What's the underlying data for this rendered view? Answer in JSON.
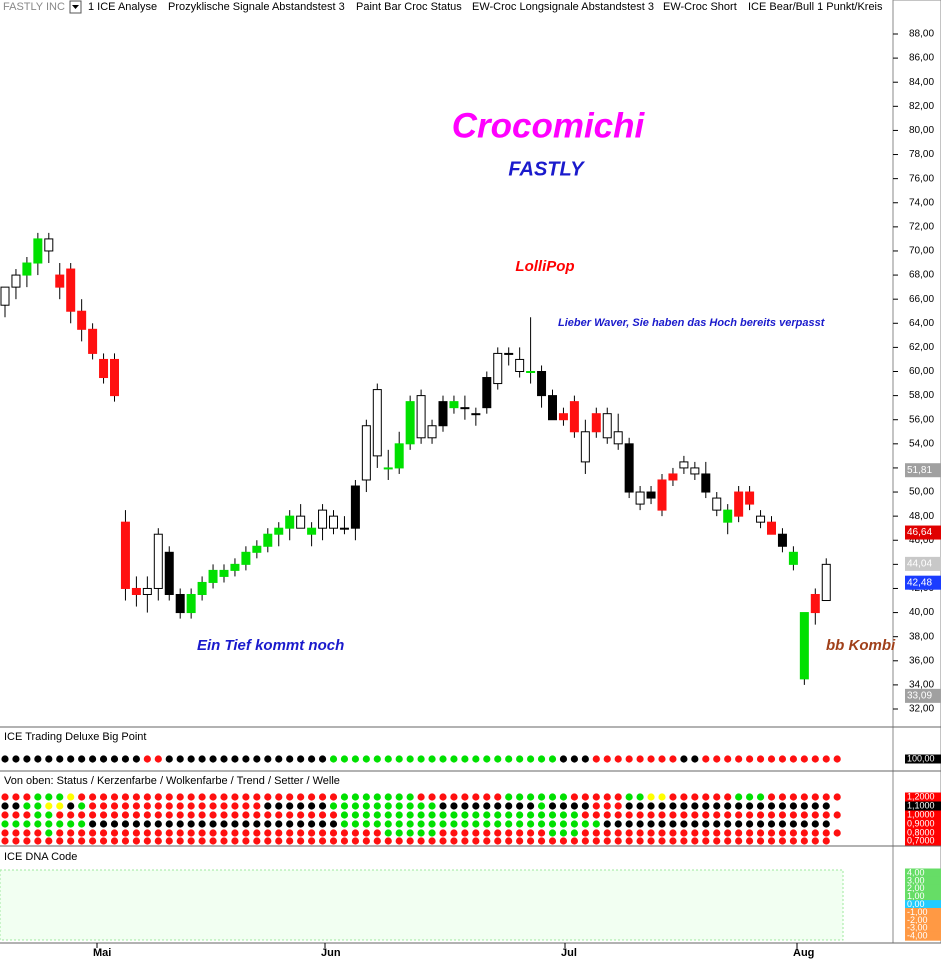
{
  "toolbar": {
    "symbol": "FASTLY INC",
    "items": [
      "1 ICE Analyse",
      "Prozyklische Signale Abstandstest 3",
      "Paint Bar Croc Status",
      "EW-Croc Longsignale Abstandstest 3",
      "EW-Croc Short",
      "ICE Bear/Bull 1 Punkt/Kreis"
    ]
  },
  "annotations": {
    "title": "Crocomichi",
    "subtitle": "FASTLY",
    "lollipop": "LolliPop",
    "waver": "Lieber Waver, Sie haben das Hoch bereits verpasst",
    "tief": "Ein Tief kommt noch",
    "kombi": "bb Kombi"
  },
  "price_axis": {
    "ylim": [
      32,
      88
    ],
    "yticks": [
      {
        "value": 88,
        "label": "88,00"
      },
      {
        "value": 86,
        "label": "86,00"
      },
      {
        "value": 84,
        "label": "84,00"
      },
      {
        "value": 82,
        "label": "82,00"
      },
      {
        "value": 80,
        "label": "80,00"
      },
      {
        "value": 78,
        "label": "78,00"
      },
      {
        "value": 76,
        "label": "76,00"
      },
      {
        "value": 74,
        "label": "74,00"
      },
      {
        "value": 72,
        "label": "72,00"
      },
      {
        "value": 70,
        "label": "70,00"
      },
      {
        "value": 68,
        "label": "68,00"
      },
      {
        "value": 66,
        "label": "66,00"
      },
      {
        "value": 64,
        "label": "64,00"
      },
      {
        "value": 62,
        "label": "62,00"
      },
      {
        "value": 60,
        "label": "60,00"
      },
      {
        "value": 58,
        "label": "58,00"
      },
      {
        "value": 56,
        "label": "56,00"
      },
      {
        "value": 54,
        "label": "54,00"
      },
      {
        "value": 52,
        "label": "52,00"
      },
      {
        "value": 50,
        "label": "50,00"
      },
      {
        "value": 48,
        "label": "48,00"
      },
      {
        "value": 46,
        "label": "46,00"
      },
      {
        "value": 44,
        "label": "44,00"
      },
      {
        "value": 42,
        "label": "42,00"
      },
      {
        "value": 40,
        "label": "40,00"
      },
      {
        "value": 38,
        "label": "38,00"
      },
      {
        "value": 36,
        "label": "36,00"
      },
      {
        "value": 34,
        "label": "34,00"
      },
      {
        "value": 32,
        "label": "32,00"
      }
    ],
    "tags": [
      {
        "value": 51.81,
        "label": "51,81",
        "color": "#a0a0a0"
      },
      {
        "value": 46.64,
        "label": "46,64",
        "color": "#e00000"
      },
      {
        "value": 44.04,
        "label": "44,04",
        "color": "#c8c8c8"
      },
      {
        "value": 42.48,
        "label": "42,48",
        "color": "#1a3cff"
      },
      {
        "value": 33.09,
        "label": "33,09",
        "color": "#a0a0a0"
      }
    ]
  },
  "candles": {
    "ohlc": [
      [
        65.5,
        67,
        64.5,
        67
      ],
      [
        67,
        68.5,
        66,
        68
      ],
      [
        68,
        69.5,
        67,
        69
      ],
      [
        69,
        71.5,
        68,
        71
      ],
      [
        70,
        71.5,
        69,
        71
      ],
      [
        68,
        69,
        66,
        67
      ],
      [
        68.5,
        69,
        64,
        65
      ],
      [
        65,
        66,
        62.5,
        63.5
      ],
      [
        63.5,
        64,
        61,
        61.5
      ],
      [
        61,
        61.5,
        59,
        59.5
      ],
      [
        61,
        61.5,
        57.5,
        58
      ],
      [
        47.5,
        48.5,
        41,
        42
      ],
      [
        42,
        43,
        40.5,
        41.5
      ],
      [
        41.5,
        43,
        40,
        42
      ],
      [
        42,
        47,
        41,
        46.5
      ],
      [
        45,
        45.5,
        41,
        41.5
      ],
      [
        41.5,
        42,
        39.5,
        40
      ],
      [
        40,
        42,
        39.5,
        41.5
      ],
      [
        41.5,
        43,
        41,
        42.5
      ],
      [
        42.5,
        44,
        42,
        43.5
      ],
      [
        43,
        44,
        42.5,
        43.5
      ],
      [
        43.5,
        44.5,
        43,
        44
      ],
      [
        44,
        45.5,
        43.5,
        45
      ],
      [
        45,
        46,
        44.5,
        45.5
      ],
      [
        45.5,
        47,
        45,
        46.5
      ],
      [
        46.5,
        47.5,
        45.5,
        47
      ],
      [
        47,
        48.5,
        46,
        48
      ],
      [
        48,
        49,
        47,
        47
      ],
      [
        46.5,
        47.5,
        45.5,
        47
      ],
      [
        47,
        49,
        46,
        48.5
      ],
      [
        48,
        48.5,
        46.5,
        47
      ],
      [
        47,
        48,
        46.5,
        47
      ],
      [
        47,
        51,
        46,
        50.5
      ],
      [
        51,
        56,
        50,
        55.5
      ],
      [
        53,
        59,
        52,
        58.5
      ],
      [
        52,
        53.5,
        51,
        52
      ],
      [
        52,
        55,
        51.5,
        54
      ],
      [
        54,
        58,
        53.5,
        57.5
      ],
      [
        58,
        58.5,
        54,
        54.5
      ],
      [
        54.5,
        56,
        54,
        55.5
      ],
      [
        55.5,
        58,
        55,
        57.5
      ],
      [
        57.5,
        58,
        56.5,
        57
      ],
      [
        57,
        58,
        56,
        57
      ],
      [
        56.5,
        57,
        55.5,
        56.5
      ],
      [
        57,
        60,
        56.5,
        59.5
      ],
      [
        59,
        62,
        58.5,
        61.5
      ],
      [
        61.5,
        62,
        60.5,
        61.5
      ],
      [
        61,
        62,
        59.5,
        60
      ],
      [
        60,
        64.5,
        59,
        60
      ],
      [
        60,
        60.5,
        57,
        58
      ],
      [
        58,
        58.5,
        56,
        56
      ],
      [
        56,
        57,
        55.5,
        56.5
      ],
      [
        57.5,
        58,
        54.5,
        55
      ],
      [
        52.5,
        56,
        51.5,
        55
      ],
      [
        55,
        57,
        54.5,
        56.5
      ],
      [
        56.5,
        57,
        54,
        54.5
      ],
      [
        55,
        56.5,
        53.5,
        54
      ],
      [
        54,
        54.5,
        49.5,
        50
      ],
      [
        50,
        50.5,
        48.5,
        49
      ],
      [
        49.5,
        50.5,
        49,
        50
      ],
      [
        48.5,
        51.5,
        48,
        51
      ],
      [
        51,
        52,
        50.5,
        51.5
      ],
      [
        52.5,
        53,
        51.5,
        52
      ],
      [
        51.5,
        52.5,
        51,
        52
      ],
      [
        51.5,
        52.5,
        49.5,
        50
      ],
      [
        49.5,
        50,
        48,
        48.5
      ],
      [
        48.5,
        49,
        46.5,
        47.5
      ],
      [
        48,
        50.5,
        47.5,
        50
      ],
      [
        50,
        50.5,
        48.5,
        49
      ],
      [
        48,
        48.5,
        47,
        47.5
      ],
      [
        47.5,
        48,
        46.5,
        46.5
      ],
      [
        46.5,
        47,
        45,
        45.5
      ],
      [
        45,
        45.5,
        43.5,
        44
      ],
      [
        34.5,
        40,
        34,
        40
      ],
      [
        40,
        42,
        39,
        41.5
      ],
      [
        41,
        44.5,
        41,
        44
      ]
    ],
    "colors": "wwggwrrrrrrrrwwkkggggggggggwgwwkkwwgggwwkgwkkwwwgkkrrwrwwkwkrrwwkwgrrwrkggrwww",
    "palette": {
      "w": "#ffffff",
      "g": "#00e000",
      "r": "#ff1010",
      "k": "#000000",
      "y": "#ffff00"
    }
  },
  "panels": [
    {
      "title": "ICE Trading Deluxe Big Point",
      "labels": [
        "100,00"
      ],
      "rows": [
        "kkkkkkkkkkkkkrrkkkkkkkkkkkkkkkgggggggggggggggggggggkkkrrrrrrrrkkrrrrrrrrrrrrr"
      ]
    },
    {
      "title": "Von oben: Status / Kerzenfarbe / Wolkenfarbe / Trend / Setter / Welle",
      "labels": [
        "1,2000",
        "1,1000",
        "1,0000",
        "0,9000",
        "0,8000",
        "0,7000"
      ],
      "rows": [
        "rrrgggyrrrrrrrrrrrrrrrrrrrrrrrrgggggggrrrrrrrrggggggrrrrrggyyrrrrrrgggrrrrrrr",
        "kkggyykgrrrrrrrrrrrrrrrrkkkkkkggggggggggkkkkkkkkkgkkkkrrrkkkkkkkkkkkkkkkkkkk",
        "rrrggrrrrrrrrrrrrrrrrrrrrrrrrrrggggggggggggggggggggggrrrrrrrrrrrrrrrrrrrrrrrr",
        "ggggggggkkkkkkkkkkkkkkkkkkkkkkkggggggggggggggggggggggggkkkkkkkkkkkkkkkkkkkkk",
        "rrrrgrrrrrrrrrrrrrrrrrrrrrrrrrrrrrrgggggrrrrrrrrrrgggrrrrrrrrrrrrrrrrrrrrrrrr",
        "rrrrrrrrrrrrrrrrrrrrrrrrrrrrrrrrrrrrrrrrrrrrrrrrrrrrrrrrrrrrrrrrrrrrrrrrrrrr"
      ]
    },
    {
      "title": "ICE DNA Code",
      "labels": [
        "4,00",
        "3,00",
        "2,00",
        "1,00",
        "0,00",
        "-1,00",
        "-2,00",
        "-3,00",
        "-4,00"
      ]
    }
  ],
  "months": [
    "Mai",
    "Jun",
    "Jul",
    "Aug"
  ]
}
